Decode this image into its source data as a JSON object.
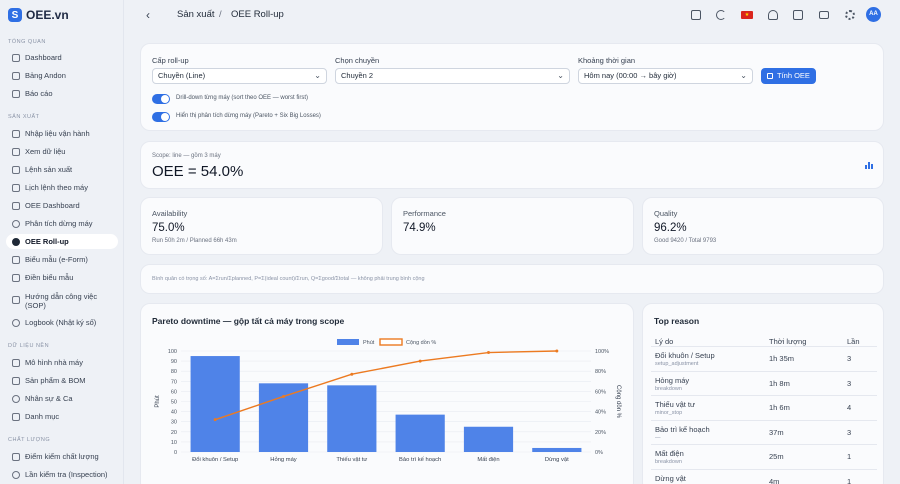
{
  "app": {
    "name": "OEE.vn",
    "logo_letter": "S"
  },
  "sidebar": {
    "sections": [
      {
        "title": "TỔNG QUAN",
        "items": [
          {
            "label": "Dashboard",
            "icon": "dashboard-icon"
          },
          {
            "label": "Bảng Andon",
            "icon": "andon-board-icon"
          },
          {
            "label": "Báo cáo",
            "icon": "report-icon"
          }
        ]
      },
      {
        "title": "SẢN XUẤT",
        "items": [
          {
            "label": "Nhập liệu vận hành",
            "icon": "data-entry-icon"
          },
          {
            "label": "Xem dữ liệu",
            "icon": "chart-icon"
          },
          {
            "label": "Lệnh sản xuất",
            "icon": "order-icon"
          },
          {
            "label": "Lịch lệnh theo máy",
            "icon": "calendar-icon"
          },
          {
            "label": "OEE Dashboard",
            "icon": "oee-dashboard-icon"
          },
          {
            "label": "Phân tích dừng máy",
            "icon": "downtime-icon"
          },
          {
            "label": "OEE Roll-up",
            "icon": "rollup-icon",
            "active": true
          },
          {
            "label": "Biểu mẫu (e-Form)",
            "icon": "form-icon"
          },
          {
            "label": "Điền biểu mẫu",
            "icon": "fill-form-icon"
          },
          {
            "label": "Hướng dẫn công việc (SOP)",
            "icon": "sop-icon"
          },
          {
            "label": "Logbook (Nhật ký số)",
            "icon": "logbook-icon"
          }
        ]
      },
      {
        "title": "DỮ LIỆU NỀN",
        "items": [
          {
            "label": "Mô hình nhà máy",
            "icon": "factory-model-icon"
          },
          {
            "label": "Sản phẩm & BOM",
            "icon": "product-icon"
          },
          {
            "label": "Nhân sự & Ca",
            "icon": "people-icon"
          },
          {
            "label": "Danh mục",
            "icon": "category-icon"
          }
        ]
      },
      {
        "title": "CHẤT LƯỢNG",
        "items": [
          {
            "label": "Điểm kiểm chất lượng",
            "icon": "quality-check-icon"
          },
          {
            "label": "Lần kiểm tra (Inspection)",
            "icon": "inspection-icon"
          }
        ]
      }
    ]
  },
  "topbar": {
    "back_glyph": "‹",
    "breadcrumb": [
      "Sản xuất",
      "OEE Roll-up"
    ],
    "separator": "/",
    "flag_glyph": "★",
    "avatar": "AA",
    "icons": [
      "fullscreen-icon",
      "moon-icon",
      "flag-icon",
      "bell-icon",
      "checkbox-icon",
      "mail-icon",
      "gear-icon",
      "avatar-icon"
    ]
  },
  "filters": {
    "rollup_label": "Cấp roll-up",
    "rollup_value": "Chuyền (Line)",
    "line_label": "Chọn chuyền",
    "line_value": "Chuyền 2",
    "time_label": "Khoảng thời gian",
    "time_value": "Hôm nay (00:00 → bây giờ)",
    "compute_button": "Tính OEE",
    "chevron": "⌄",
    "toggle1_label": "Drill-down từng máy (sort theo OEE — worst first)",
    "toggle1_on": true,
    "toggle2_label": "Hiển thị phân tích dừng máy (Pareto + Six Big Losses)",
    "toggle2_on": true
  },
  "summary": {
    "scope": "Scope: line — gồm 3 máy",
    "oee": "OEE = 54.0%"
  },
  "metrics": [
    {
      "title": "Availability",
      "value": "75.0%",
      "sub": "Run 50h 2m / Planned 66h 43m"
    },
    {
      "title": "Performance",
      "value": "74.9%",
      "sub": ""
    },
    {
      "title": "Quality",
      "value": "96.2%",
      "sub": "Good 9420 / Total 9793"
    }
  ],
  "note": "Bình quân có trọng số: A=Σrun/Σplanned, P=Σ(ideal count)/Σrun, Q=Σgood/Σtotal — không phải trung bình cộng",
  "pareto": {
    "title": "Pareto downtime — gộp tất cả máy trong scope"
  },
  "chart_data": {
    "type": "bar",
    "categories": [
      "Đổi khuôn / Setup",
      "Hỏng máy",
      "Thiếu vật tư",
      "Bảo trì kế hoạch",
      "Mất điện",
      "Dừng vật"
    ],
    "series": [
      {
        "name": "Phút",
        "type": "bar",
        "axis": "left",
        "values": [
          95,
          68,
          66,
          37,
          25,
          4
        ]
      },
      {
        "name": "Cộng dồn %",
        "type": "line",
        "axis": "right",
        "values": [
          32,
          55,
          77,
          90,
          98.5,
          100
        ]
      }
    ],
    "ylabel": "Phút",
    "y2label": "Cộng dồn %",
    "ylim": [
      0,
      100
    ],
    "y2lim": [
      0,
      100
    ],
    "yticks": [
      0,
      10,
      20,
      30,
      40,
      50,
      60,
      70,
      80,
      90,
      100
    ],
    "y2ticks": [
      "0%",
      "20%",
      "40%",
      "60%",
      "80%",
      "100%"
    ],
    "legend": "top",
    "grid": true,
    "colors": {
      "bar": "#4f83e8",
      "line": "#ec7a21"
    }
  },
  "top_reason": {
    "title": "Top reason",
    "headers": [
      "Lý do",
      "Thời lượng",
      "Lần"
    ],
    "rows": [
      {
        "name": "Đổi khuôn / Setup",
        "code": "setup_adjustment",
        "duration": "1h 35m",
        "count": "3"
      },
      {
        "name": "Hỏng máy",
        "code": "breakdown",
        "duration": "1h 8m",
        "count": "3"
      },
      {
        "name": "Thiếu vật tư",
        "code": "minor_stop",
        "duration": "1h 6m",
        "count": "4"
      },
      {
        "name": "Bảo trì kế hoạch",
        "code": "—",
        "duration": "37m",
        "count": "3"
      },
      {
        "name": "Mất điện",
        "code": "breakdown",
        "duration": "25m",
        "count": "1"
      },
      {
        "name": "Dừng vật",
        "code": "",
        "duration": "4m",
        "count": "1"
      }
    ]
  }
}
